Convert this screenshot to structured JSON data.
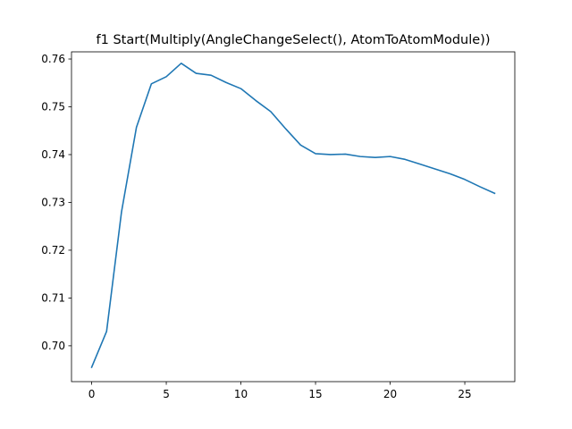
{
  "chart_data": {
    "type": "line",
    "title": "f1 Start(Multiply(AngleChangeSelect(), AtomToAtomModule))",
    "xlabel": "",
    "ylabel": "",
    "xlim": [
      -1.35,
      28.35
    ],
    "ylim": [
      0.6925,
      0.7615
    ],
    "xticks": [
      0,
      5,
      10,
      15,
      20,
      25
    ],
    "xtick_labels": [
      "0",
      "5",
      "10",
      "15",
      "20",
      "25"
    ],
    "yticks": [
      0.7,
      0.71,
      0.72,
      0.73,
      0.74,
      0.75,
      0.76
    ],
    "ytick_labels": [
      "0.70",
      "0.71",
      "0.72",
      "0.73",
      "0.74",
      "0.75",
      "0.76"
    ],
    "grid": false,
    "series": [
      {
        "color": "#1f77b4",
        "x": [
          0,
          1,
          2,
          3,
          4,
          5,
          6,
          7,
          8,
          9,
          10,
          11,
          12,
          13,
          14,
          15,
          16,
          17,
          18,
          19,
          20,
          21,
          22,
          23,
          24,
          25,
          26,
          27
        ],
        "y": [
          0.6955,
          0.703,
          0.728,
          0.7457,
          0.7548,
          0.7563,
          0.7591,
          0.757,
          0.7566,
          0.7551,
          0.7538,
          0.7513,
          0.749,
          0.7454,
          0.742,
          0.7402,
          0.74,
          0.7401,
          0.7396,
          0.7394,
          0.7396,
          0.739,
          0.738,
          0.737,
          0.736,
          0.7348,
          0.7333,
          0.7319
        ]
      }
    ]
  }
}
